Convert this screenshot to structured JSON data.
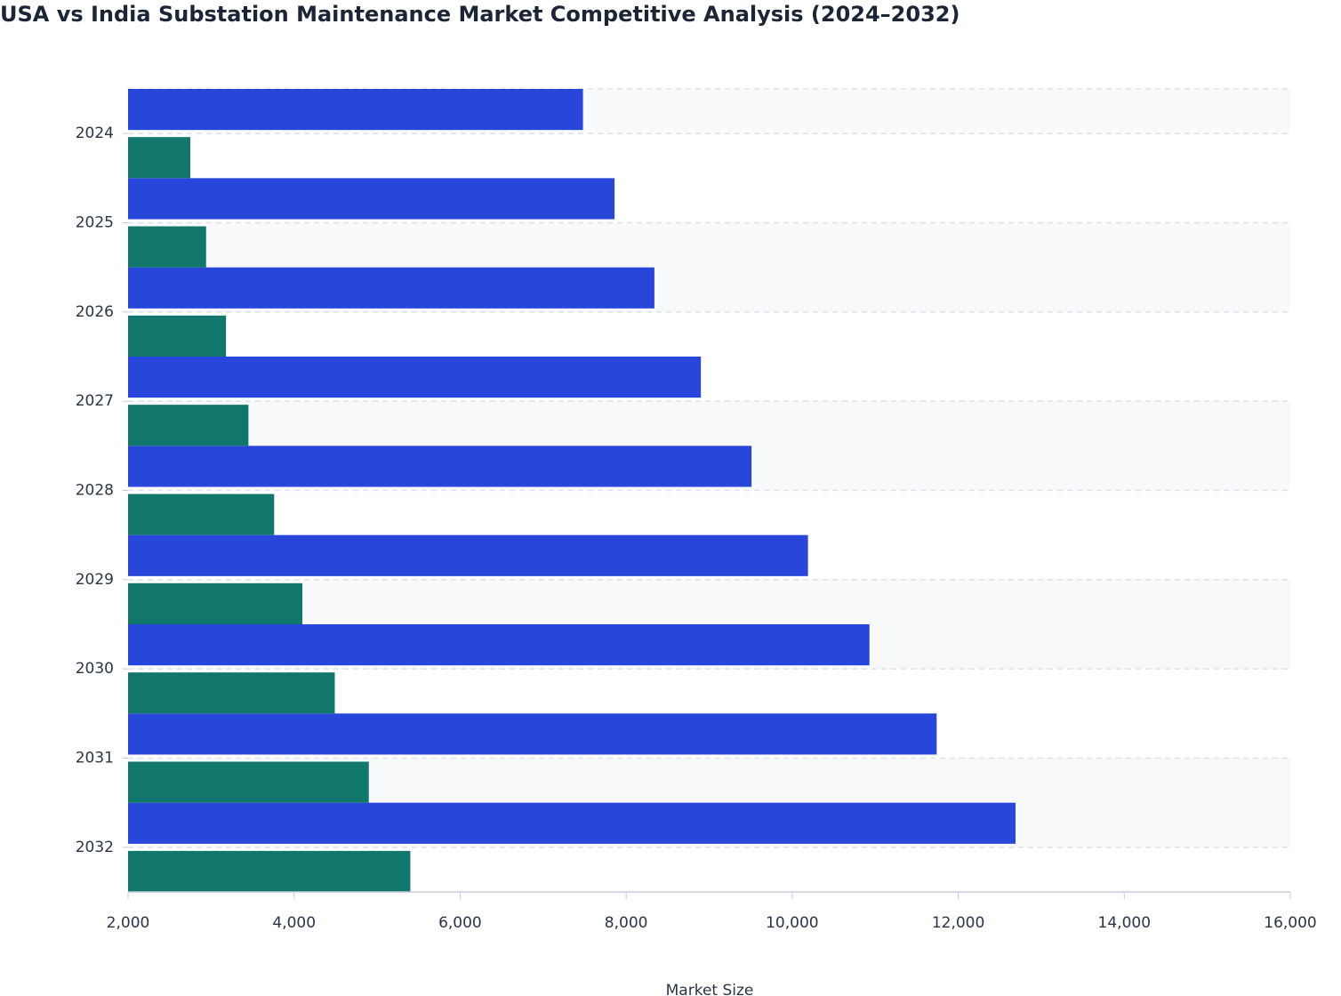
{
  "chart_data": {
    "type": "bar",
    "orientation": "horizontal",
    "title": "USA vs India Substation Maintenance Market Competitive Analysis (2024–2032)",
    "x_label": "Market Size",
    "categories": [
      "2024",
      "2025",
      "2026",
      "2027",
      "2028",
      "2029",
      "2030",
      "2031",
      "2032"
    ],
    "series": [
      {
        "color": "#2946da",
        "values": [
          7480,
          7860,
          8340,
          8900,
          9510,
          10190,
          10930,
          11740,
          12690
        ]
      },
      {
        "color": "#11766b",
        "values": [
          2750,
          2940,
          3180,
          3450,
          3760,
          4100,
          4490,
          4900,
          5400
        ]
      }
    ],
    "xlim": [
      2000,
      16000
    ],
    "xticks": [
      {
        "value": 2000,
        "label": "2,000"
      },
      {
        "value": 4000,
        "label": "4,000"
      },
      {
        "value": 6000,
        "label": "6,000"
      },
      {
        "value": 8000,
        "label": "8,000"
      },
      {
        "value": 10000,
        "label": "10,000"
      },
      {
        "value": 12000,
        "label": "12,000"
      },
      {
        "value": 14000,
        "label": "14,000"
      },
      {
        "value": 16000,
        "label": "16,000"
      }
    ],
    "grid": true
  }
}
